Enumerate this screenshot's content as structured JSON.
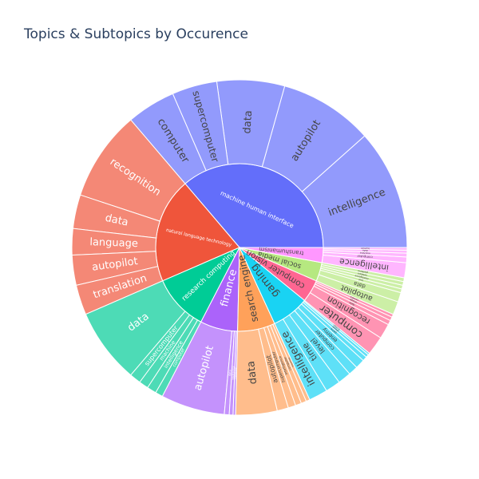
{
  "chart_data": {
    "type": "sunburst",
    "title": "Topics & Subtopics by Occurence",
    "parents": [
      {
        "name": "machine human interface",
        "color": "#636efa",
        "value": 100,
        "children": [
          {
            "name": "intelligence",
            "value": 32
          },
          {
            "name": "autopilot",
            "value": 25
          },
          {
            "name": "data",
            "value": 18
          },
          {
            "name": "supercomputer",
            "value": 12
          },
          {
            "name": "computer",
            "value": 13
          }
        ]
      },
      {
        "name": "natural language technology",
        "color": "#ef553b",
        "value": 56,
        "children": [
          {
            "name": "recognition",
            "value": 24
          },
          {
            "name": "data",
            "value": 9
          },
          {
            "name": "language",
            "value": 7
          },
          {
            "name": "autopilot",
            "value": 8
          },
          {
            "name": "translation",
            "value": 8
          }
        ]
      },
      {
        "name": "research computing",
        "color": "#00cc96",
        "value": 30,
        "children": [
          {
            "name": "data",
            "value": 20
          },
          {
            "name": "supercomputer",
            "value": 3
          },
          {
            "name": "machine",
            "value": 2.5
          },
          {
            "name": "intelligence",
            "value": 2.5
          },
          {
            "name": "computer",
            "value": 2
          }
        ]
      },
      {
        "name": "finance",
        "color": "#ab63fa",
        "value": 20,
        "children": [
          {
            "name": "autopilot",
            "value": 17
          },
          {
            "name": "data",
            "value": 1.3
          },
          {
            "name": "intelligence",
            "value": 1
          },
          {
            "name": "computer",
            "value": 0.7
          }
        ]
      },
      {
        "name": "search engine",
        "color": "#ffa15a",
        "value": 20,
        "children": [
          {
            "name": "data",
            "value": 11
          },
          {
            "name": "autopilot",
            "value": 3
          },
          {
            "name": "supercomputer",
            "value": 2
          },
          {
            "name": "intelligence",
            "value": 1.6
          },
          {
            "name": "computer",
            "value": 1.4
          },
          {
            "name": "machine",
            "value": 1
          }
        ]
      },
      {
        "name": "gaming",
        "color": "#19d3f3",
        "value": 20,
        "children": [
          {
            "name": "intelligence",
            "value": 5
          },
          {
            "name": "time",
            "value": 4
          },
          {
            "name": "level",
            "value": 3.5
          },
          {
            "name": "computer",
            "value": 2.5
          },
          {
            "name": "enemy",
            "value": 2.5
          },
          {
            "name": "game",
            "value": 1.2
          },
          {
            "name": "player",
            "value": 0.8
          },
          {
            "name": "screen",
            "value": 0.5
          }
        ]
      },
      {
        "name": "computer vision",
        "color": "#ff6692",
        "value": 12,
        "children": [
          {
            "name": "computer",
            "value": 5
          },
          {
            "name": "recognition",
            "value": 4
          },
          {
            "name": "data",
            "value": 1.2
          },
          {
            "name": "image",
            "value": 1
          },
          {
            "name": "camera",
            "value": 0.8
          }
        ]
      },
      {
        "name": "social media",
        "color": "#b6e880",
        "value": 10,
        "children": [
          {
            "name": "autopilot",
            "value": 3.5
          },
          {
            "name": "data",
            "value": 2.5
          },
          {
            "name": "tool",
            "value": 1
          },
          {
            "name": "intelligence",
            "value": 1
          },
          {
            "name": "network",
            "value": 1
          },
          {
            "name": "platform",
            "value": 1
          }
        ]
      },
      {
        "name": "transhumanism",
        "color": "#ff97ff",
        "value": 8,
        "children": [
          {
            "name": "intelligence",
            "value": 4
          },
          {
            "name": "computer",
            "value": 1.5
          },
          {
            "name": "machine",
            "value": 1
          },
          {
            "name": "data",
            "value": 0.8
          },
          {
            "name": "human",
            "value": 0.7
          }
        ]
      }
    ]
  }
}
